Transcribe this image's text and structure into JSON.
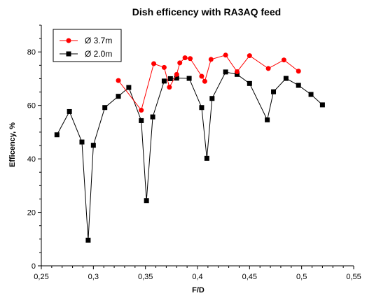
{
  "chart_data": {
    "type": "line",
    "title": "Dish efficency with RA3AQ feed",
    "xlabel": "F/D",
    "ylabel": "Efficency, %",
    "xlim": [
      0.25,
      0.55
    ],
    "ylim": [
      0,
      90
    ],
    "x_ticks": [
      0.25,
      0.3,
      0.35,
      0.4,
      0.45,
      0.5,
      0.55
    ],
    "x_tick_labels": [
      "0,25",
      "0,3",
      "0,35",
      "0,4",
      "0,45",
      "0,5",
      "0,55"
    ],
    "y_ticks": [
      0,
      20,
      40,
      60,
      80
    ],
    "y_tick_labels": [
      "0",
      "20",
      "40",
      "60",
      "80"
    ],
    "grid": false,
    "legend_position": "top-left",
    "series": [
      {
        "name": "Ø 3.7m",
        "color": "#ff0000",
        "marker": "circle",
        "points": [
          [
            0.324,
            69.3
          ],
          [
            0.346,
            58.2
          ],
          [
            0.358,
            75.6
          ],
          [
            0.368,
            74.2
          ],
          [
            0.373,
            66.8
          ],
          [
            0.38,
            71.6
          ],
          [
            0.383,
            75.9
          ],
          [
            0.388,
            77.8
          ],
          [
            0.393,
            77.5
          ],
          [
            0.404,
            70.9
          ],
          [
            0.407,
            69.0
          ],
          [
            0.413,
            77.2
          ],
          [
            0.427,
            78.8
          ],
          [
            0.438,
            72.6
          ],
          [
            0.45,
            78.6
          ],
          [
            0.468,
            73.8
          ],
          [
            0.483,
            77.0
          ],
          [
            0.497,
            72.8
          ]
        ]
      },
      {
        "name": "Ø 2.0m",
        "color": "#000000",
        "marker": "square",
        "points": [
          [
            0.265,
            49.0
          ],
          [
            0.277,
            57.7
          ],
          [
            0.289,
            46.3
          ],
          [
            0.295,
            9.6
          ],
          [
            0.3,
            45.1
          ],
          [
            0.311,
            59.2
          ],
          [
            0.324,
            63.4
          ],
          [
            0.334,
            66.7
          ],
          [
            0.346,
            54.3
          ],
          [
            0.351,
            24.4
          ],
          [
            0.357,
            55.7
          ],
          [
            0.368,
            69.1
          ],
          [
            0.374,
            70.0
          ],
          [
            0.38,
            70.2
          ],
          [
            0.392,
            70.1
          ],
          [
            0.404,
            59.2
          ],
          [
            0.409,
            40.2
          ],
          [
            0.414,
            62.6
          ],
          [
            0.427,
            72.5
          ],
          [
            0.438,
            71.6
          ],
          [
            0.45,
            68.2
          ],
          [
            0.467,
            54.6
          ],
          [
            0.473,
            65.1
          ],
          [
            0.485,
            70.1
          ],
          [
            0.497,
            67.5
          ],
          [
            0.509,
            64.1
          ],
          [
            0.52,
            60.2
          ]
        ]
      }
    ]
  }
}
